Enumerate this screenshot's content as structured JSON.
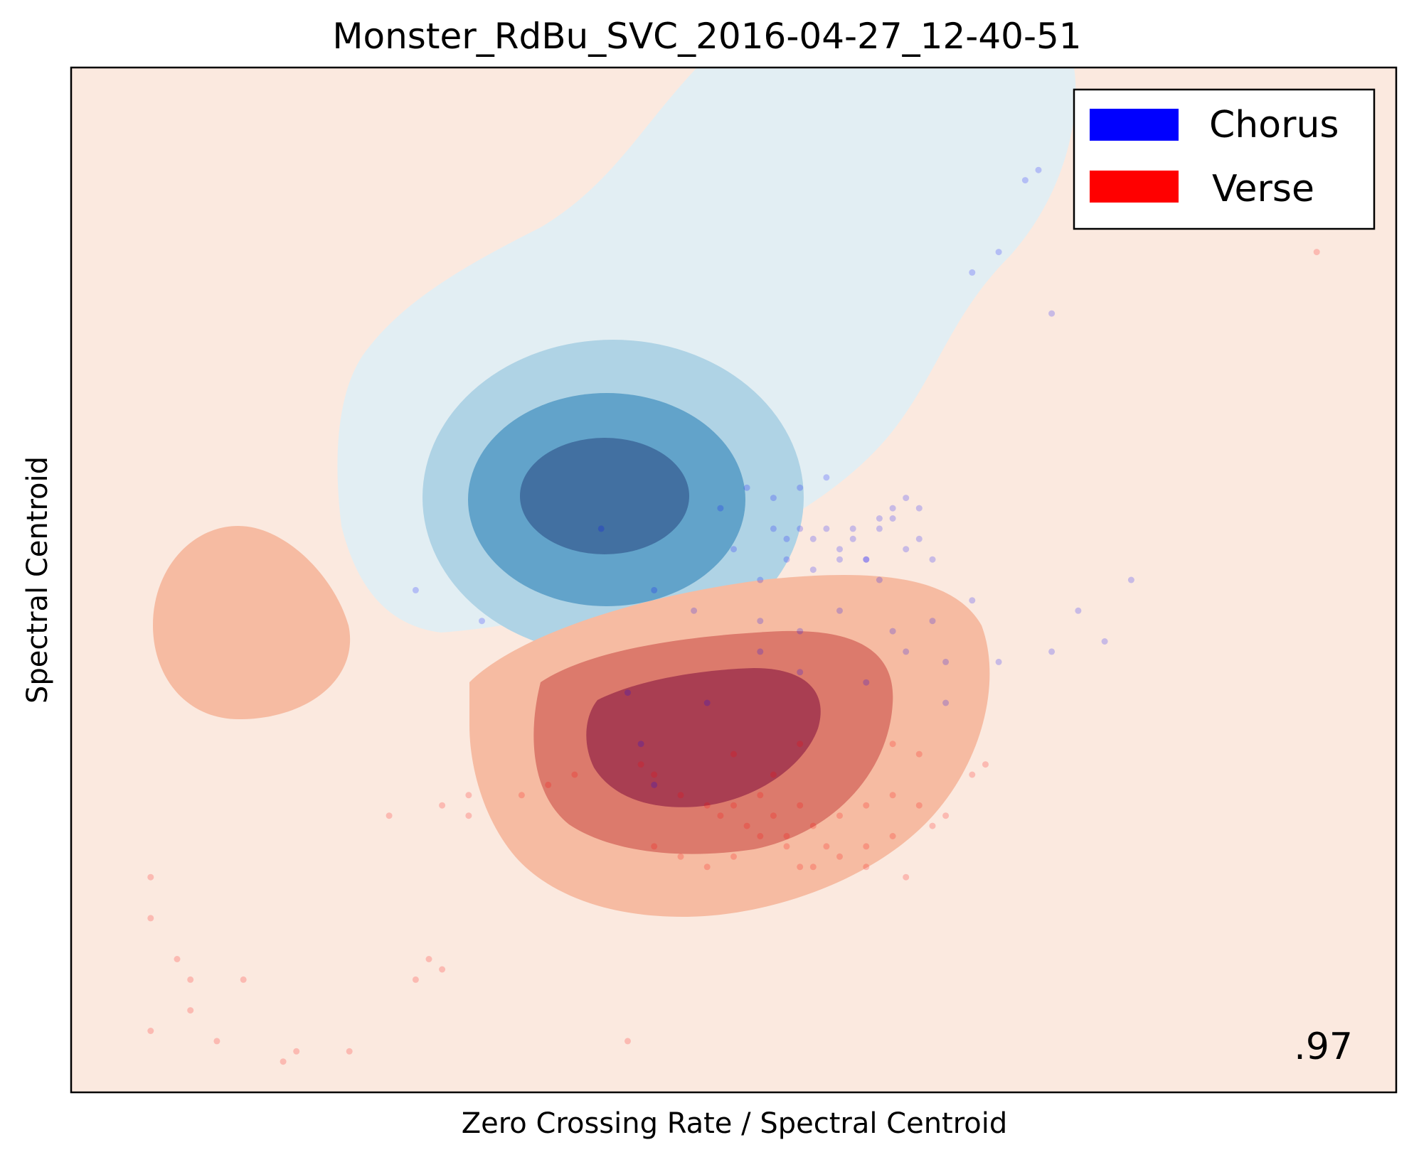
{
  "chart": {
    "title": "Monster_RdBu_SVC_2016-04-27_12-40-51",
    "xlabel": "Zero Crossing Rate / Spectral Centroid",
    "ylabel": "Spectral Centroid",
    "score": ".97"
  },
  "chart_data": {
    "type": "scatter",
    "title": "Monster_RdBu_SVC_2016-04-27_12-40-51",
    "xlabel": "Zero Crossing Rate / Spectral Centroid",
    "ylabel": "Spectral Centroid",
    "ticks_visible": false,
    "grid": false,
    "legend_position": "top-right",
    "colormap": "RdBu",
    "decision_background": "filled contours of SVC decision function (blue region = Chorus, red region = Verse)",
    "score_annotation": ".97",
    "legend": [
      {
        "name": "Chorus",
        "color": "#0000ff"
      },
      {
        "name": "Verse",
        "color": "#ff0000"
      }
    ],
    "series": [
      {
        "name": "Chorus",
        "color": "#0000ff",
        "x": [
          0.58,
          0.61,
          0.4,
          0.44,
          0.49,
          0.52,
          0.53,
          0.54,
          0.55,
          0.56,
          0.57,
          0.58,
          0.59,
          0.6,
          0.61,
          0.62,
          0.63,
          0.64,
          0.5,
          0.51,
          0.52,
          0.53,
          0.54,
          0.55,
          0.56,
          0.57,
          0.59,
          0.6,
          0.61,
          0.62,
          0.63,
          0.64,
          0.65,
          0.52,
          0.55,
          0.58,
          0.62,
          0.65,
          0.68,
          0.66,
          0.7,
          0.74,
          0.78,
          0.8,
          0.76,
          0.74,
          0.72,
          0.73,
          0.7,
          0.26,
          0.31,
          0.47,
          0.43,
          0.44,
          0.42,
          0.48,
          0.55,
          0.6,
          0.63,
          0.66,
          0.68
        ],
        "y": [
          0.52,
          0.5,
          0.55,
          0.49,
          0.57,
          0.46,
          0.55,
          0.54,
          0.55,
          0.54,
          0.55,
          0.53,
          0.55,
          0.52,
          0.55,
          0.56,
          0.53,
          0.57,
          0.53,
          0.59,
          0.5,
          0.58,
          0.52,
          0.59,
          0.51,
          0.6,
          0.54,
          0.52,
          0.56,
          0.57,
          0.58,
          0.54,
          0.52,
          0.43,
          0.45,
          0.47,
          0.45,
          0.46,
          0.48,
          0.42,
          0.42,
          0.43,
          0.44,
          0.5,
          0.47,
          0.76,
          0.89,
          0.9,
          0.82,
          0.49,
          0.46,
          0.47,
          0.34,
          0.3,
          0.39,
          0.38,
          0.41,
          0.4,
          0.43,
          0.38,
          0.8
        ]
      },
      {
        "name": "Verse",
        "color": "#ff0000",
        "x": [
          0.43,
          0.44,
          0.46,
          0.48,
          0.49,
          0.5,
          0.51,
          0.52,
          0.53,
          0.54,
          0.55,
          0.56,
          0.58,
          0.6,
          0.62,
          0.64,
          0.65,
          0.66,
          0.55,
          0.57,
          0.6,
          0.63,
          0.44,
          0.46,
          0.48,
          0.5,
          0.52,
          0.54,
          0.56,
          0.58,
          0.6,
          0.62,
          0.3,
          0.28,
          0.24,
          0.38,
          0.36,
          0.3,
          0.34,
          0.27,
          0.28,
          0.26,
          0.06,
          0.06,
          0.09,
          0.08,
          0.13,
          0.06,
          0.09,
          0.11,
          0.16,
          0.17,
          0.21,
          0.42,
          0.94,
          0.62,
          0.55,
          0.5,
          0.53,
          0.69,
          0.68,
          0.64
        ],
        "y": [
          0.32,
          0.31,
          0.29,
          0.28,
          0.27,
          0.28,
          0.26,
          0.29,
          0.27,
          0.25,
          0.28,
          0.26,
          0.27,
          0.28,
          0.29,
          0.28,
          0.26,
          0.27,
          0.22,
          0.24,
          0.22,
          0.21,
          0.24,
          0.23,
          0.22,
          0.23,
          0.25,
          0.24,
          0.22,
          0.23,
          0.24,
          0.25,
          0.27,
          0.28,
          0.27,
          0.31,
          0.3,
          0.29,
          0.29,
          0.13,
          0.12,
          0.11,
          0.21,
          0.17,
          0.11,
          0.13,
          0.11,
          0.06,
          0.08,
          0.05,
          0.03,
          0.04,
          0.04,
          0.05,
          0.82,
          0.34,
          0.34,
          0.33,
          0.31,
          0.32,
          0.31,
          0.33
        ]
      }
    ],
    "xlim": [
      0,
      1
    ],
    "ylim": [
      0,
      1
    ]
  }
}
